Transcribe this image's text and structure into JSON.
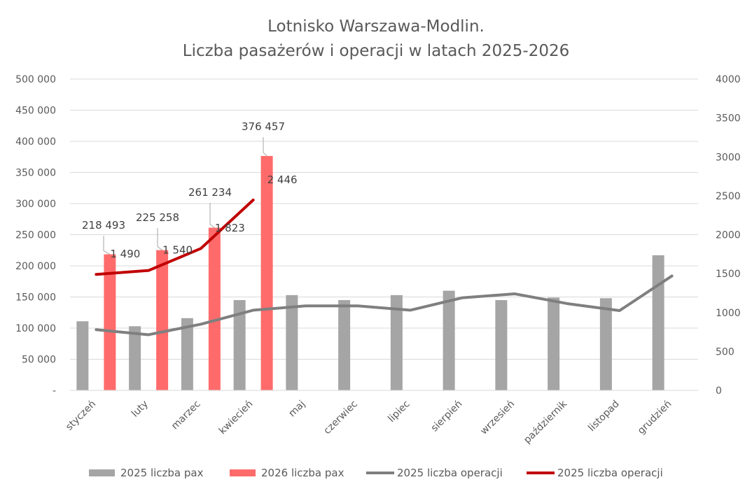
{
  "chart_data": {
    "type": "bar",
    "title": [
      "Lotnisko Warszawa-Modlin.",
      "Liczba pasażerów i operacji w latach 2025-2026"
    ],
    "categories": [
      "styczeń",
      "luty",
      "marzec",
      "kwiecień",
      "maj",
      "czerwiec",
      "lipiec",
      "sierpień",
      "wrzesień",
      "październik",
      "listopad",
      "grudzień"
    ],
    "y_left": {
      "min": 0,
      "max": 500000,
      "step": 50000,
      "tick_labels": [
        "-",
        "50 000",
        "100 000",
        "150 000",
        "200 000",
        "250 000",
        "300 000",
        "350 000",
        "400 000",
        "450 000",
        "500 000"
      ]
    },
    "y_right": {
      "min": 0,
      "max": 4000,
      "step": 500,
      "tick_labels": [
        "0",
        "500",
        "1000",
        "1500",
        "2000",
        "2500",
        "3000",
        "3500",
        "4000"
      ]
    },
    "grid": true,
    "legend_position": "bottom",
    "series": [
      {
        "name": "2025 liczba pax",
        "type": "bar",
        "axis": "left",
        "color": "#a5a5a5",
        "values": [
          111000,
          103000,
          116000,
          145000,
          153000,
          145000,
          153000,
          160000,
          145000,
          149000,
          148000,
          217000
        ]
      },
      {
        "name": "2026 liczba pax",
        "type": "bar",
        "axis": "left",
        "color": "#ff6b6b",
        "values": [
          218493,
          225258,
          261234,
          376457,
          null,
          null,
          null,
          null,
          null,
          null,
          null,
          null
        ],
        "labels": [
          "218 493",
          "225 258",
          "261 234",
          "376 457"
        ]
      },
      {
        "name": "2025 liczba operacji",
        "type": "line",
        "axis": "right",
        "color": "#7f7f7f",
        "values": [
          780,
          715,
          850,
          1030,
          1085,
          1085,
          1030,
          1190,
          1240,
          1115,
          1025,
          1470
        ]
      },
      {
        "name": "2025 liczba operacji",
        "type": "line",
        "axis": "right",
        "color": "#c00000",
        "values": [
          1490,
          1540,
          1823,
          2446,
          null,
          null,
          null,
          null,
          null,
          null,
          null,
          null
        ],
        "labels": [
          "1 490",
          "1 540",
          "1 823",
          "2 446"
        ]
      }
    ]
  }
}
